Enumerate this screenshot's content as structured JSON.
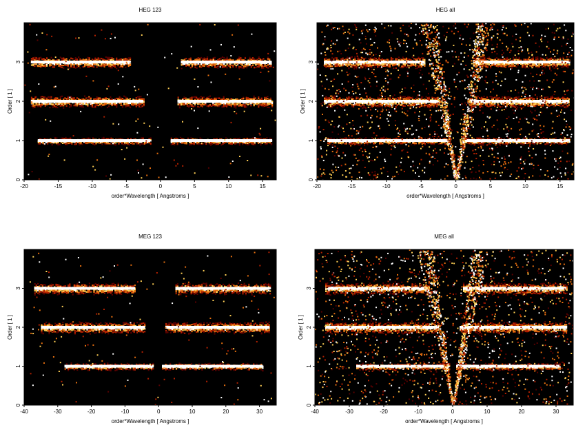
{
  "chart_data": [
    {
      "type": "heatmap",
      "title": "HEG 123",
      "xlabel": "order*Wavelength [ Angstroms ]",
      "ylabel": "Order [ 1 ]",
      "xlim": [
        -20,
        17
      ],
      "ylim": [
        0,
        4
      ],
      "xticks": [
        -20,
        -15,
        -10,
        -5,
        0,
        5,
        10,
        15
      ],
      "yticks": [
        0,
        1,
        2,
        3
      ],
      "colormap": [
        "#000000",
        "#5a0000",
        "#b22000",
        "#e8700f",
        "#ffcf55",
        "#ffffff"
      ],
      "series": [
        {
          "order": 1,
          "segments": [
            [
              -18.0,
              -1.5
            ],
            [
              1.5,
              16.4
            ]
          ]
        },
        {
          "order": 2,
          "segments": [
            [
              -19.0,
              -2.5
            ],
            [
              2.5,
              16.3
            ]
          ]
        },
        {
          "order": 3,
          "segments": [
            [
              -19.0,
              -4.5
            ],
            [
              3.0,
              16.3
            ]
          ]
        }
      ],
      "zero_order_fan": false
    },
    {
      "type": "heatmap",
      "title": "HEG all",
      "xlabel": "order*Wavelength [ Angstroms ]",
      "ylabel": "Order [ 1 ]",
      "xlim": [
        -20,
        17
      ],
      "ylim": [
        0,
        4
      ],
      "xticks": [
        -20,
        -15,
        -10,
        -5,
        0,
        5,
        10,
        15
      ],
      "yticks": [
        0,
        1,
        2,
        3
      ],
      "colormap": [
        "#000000",
        "#5a0000",
        "#b22000",
        "#e8700f",
        "#ffcf55",
        "#ffffff"
      ],
      "series": [
        {
          "order": 1,
          "segments": [
            [
              -18.5,
              -1.2
            ],
            [
              1.2,
              16.4
            ]
          ]
        },
        {
          "order": 2,
          "segments": [
            [
              -19.0,
              -2.5
            ],
            [
              2.0,
              16.3
            ]
          ]
        },
        {
          "order": 3,
          "segments": [
            [
              -19.0,
              -4.5
            ],
            [
              2.5,
              16.3
            ]
          ]
        }
      ],
      "zero_order_fan": true
    },
    {
      "type": "heatmap",
      "title": "MEG 123",
      "xlabel": "order*Wavelength [ Angstroms ]",
      "ylabel": "Order [ 1 ]",
      "xlim": [
        -40,
        35
      ],
      "ylim": [
        0,
        4
      ],
      "xticks": [
        -40,
        -30,
        -20,
        -10,
        0,
        10,
        20,
        30
      ],
      "yticks": [
        0,
        1,
        2,
        3
      ],
      "colormap": [
        "#000000",
        "#5a0000",
        "#b22000",
        "#e8700f",
        "#ffcf55",
        "#ffffff"
      ],
      "series": [
        {
          "order": 1,
          "segments": [
            [
              -28.0,
              -1.5
            ],
            [
              1.0,
              31.0
            ]
          ]
        },
        {
          "order": 2,
          "segments": [
            [
              -35.0,
              -4.0
            ],
            [
              2.0,
              33.0
            ]
          ]
        },
        {
          "order": 3,
          "segments": [
            [
              -37.0,
              -7.0
            ],
            [
              5.0,
              33.0
            ]
          ]
        }
      ],
      "zero_order_fan": false
    },
    {
      "type": "heatmap",
      "title": "MEG all",
      "xlabel": "order*Wavelength [ Angstroms ]",
      "ylabel": "Order [ 1 ]",
      "xlim": [
        -40,
        35
      ],
      "ylim": [
        0,
        4
      ],
      "xticks": [
        -40,
        -30,
        -20,
        -10,
        0,
        10,
        20,
        30
      ],
      "yticks": [
        0,
        1,
        2,
        3
      ],
      "colormap": [
        "#000000",
        "#5a0000",
        "#b22000",
        "#e8700f",
        "#ffcf55",
        "#ffffff"
      ],
      "series": [
        {
          "order": 1,
          "segments": [
            [
              -28.0,
              -1.0
            ],
            [
              1.0,
              31.0
            ]
          ]
        },
        {
          "order": 2,
          "segments": [
            [
              -37.0,
              -4.0
            ],
            [
              2.0,
              33.0
            ]
          ]
        },
        {
          "order": 3,
          "segments": [
            [
              -37.0,
              -7.0
            ],
            [
              3.0,
              33.0
            ]
          ]
        }
      ],
      "zero_order_fan": true
    }
  ]
}
